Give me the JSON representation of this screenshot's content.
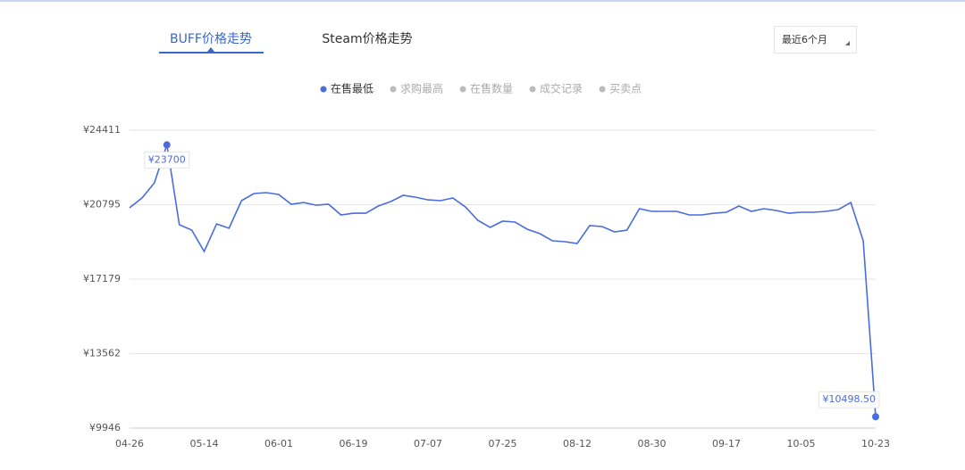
{
  "tabs": [
    "BUFF价格走势",
    "Steam价格走势"
  ],
  "period": "最近6个月",
  "legend_inactive": [
    "求购最高",
    "在售数量",
    "成交记录",
    "买卖点"
  ],
  "chart_data": {
    "type": "line",
    "categories": [
      "04-26",
      null,
      null,
      null,
      null,
      null,
      "05-14",
      null,
      null,
      null,
      null,
      null,
      "06-01",
      null,
      null,
      null,
      null,
      null,
      "06-19",
      null,
      null,
      null,
      null,
      null,
      "07-07",
      null,
      null,
      null,
      null,
      null,
      "07-25",
      null,
      null,
      null,
      null,
      null,
      "08-12",
      null,
      null,
      null,
      null,
      null,
      "08-30",
      null,
      null,
      null,
      null,
      null,
      "09-17",
      null,
      null,
      null,
      null,
      null,
      "10-05",
      null,
      null,
      null,
      null,
      null,
      "10-23"
    ],
    "series": [
      {
        "name": "在售最低",
        "color": "#4a6cde",
        "values": [
          20643,
          21120,
          21856,
          23700,
          19820,
          19560,
          18520,
          19860,
          19650,
          20990,
          21336,
          21380,
          21290,
          20816,
          20900,
          20770,
          20816,
          20296,
          20380,
          20380,
          20730,
          20946,
          21250,
          21160,
          21030,
          20990,
          21120,
          20686,
          20037,
          19690,
          19995,
          19950,
          19600,
          19387,
          19040,
          18997,
          18910,
          19777,
          19734,
          19474,
          19560,
          20600,
          20470,
          20470,
          20470,
          20296,
          20296,
          20380,
          20426,
          20730,
          20470,
          20600,
          20513,
          20380,
          20426,
          20426,
          20470,
          20556,
          20900,
          19040,
          10498.5
        ],
        "value_labels": [
          null,
          null,
          null,
          "¥23700",
          null,
          null,
          null,
          null,
          null,
          null,
          null,
          null,
          null,
          null,
          null,
          null,
          null,
          null,
          null,
          null,
          null,
          null,
          null,
          null,
          null,
          null,
          null,
          null,
          null,
          null,
          null,
          null,
          null,
          null,
          null,
          null,
          null,
          null,
          null,
          null,
          null,
          null,
          null,
          null,
          null,
          null,
          null,
          null,
          null,
          null,
          null,
          null,
          null,
          null,
          null,
          null,
          null,
          null,
          null,
          null,
          "¥10498.50"
        ]
      }
    ],
    "ylim": [
      9946,
      24411
    ],
    "yticks": [
      {
        "value": 9946,
        "label": "¥9946"
      },
      {
        "value": 13562,
        "label": "¥13562"
      },
      {
        "value": 17179,
        "label": "¥17179"
      },
      {
        "value": 20795,
        "label": "¥20795"
      },
      {
        "value": 24411,
        "label": "¥24411"
      }
    ],
    "grid": true
  }
}
